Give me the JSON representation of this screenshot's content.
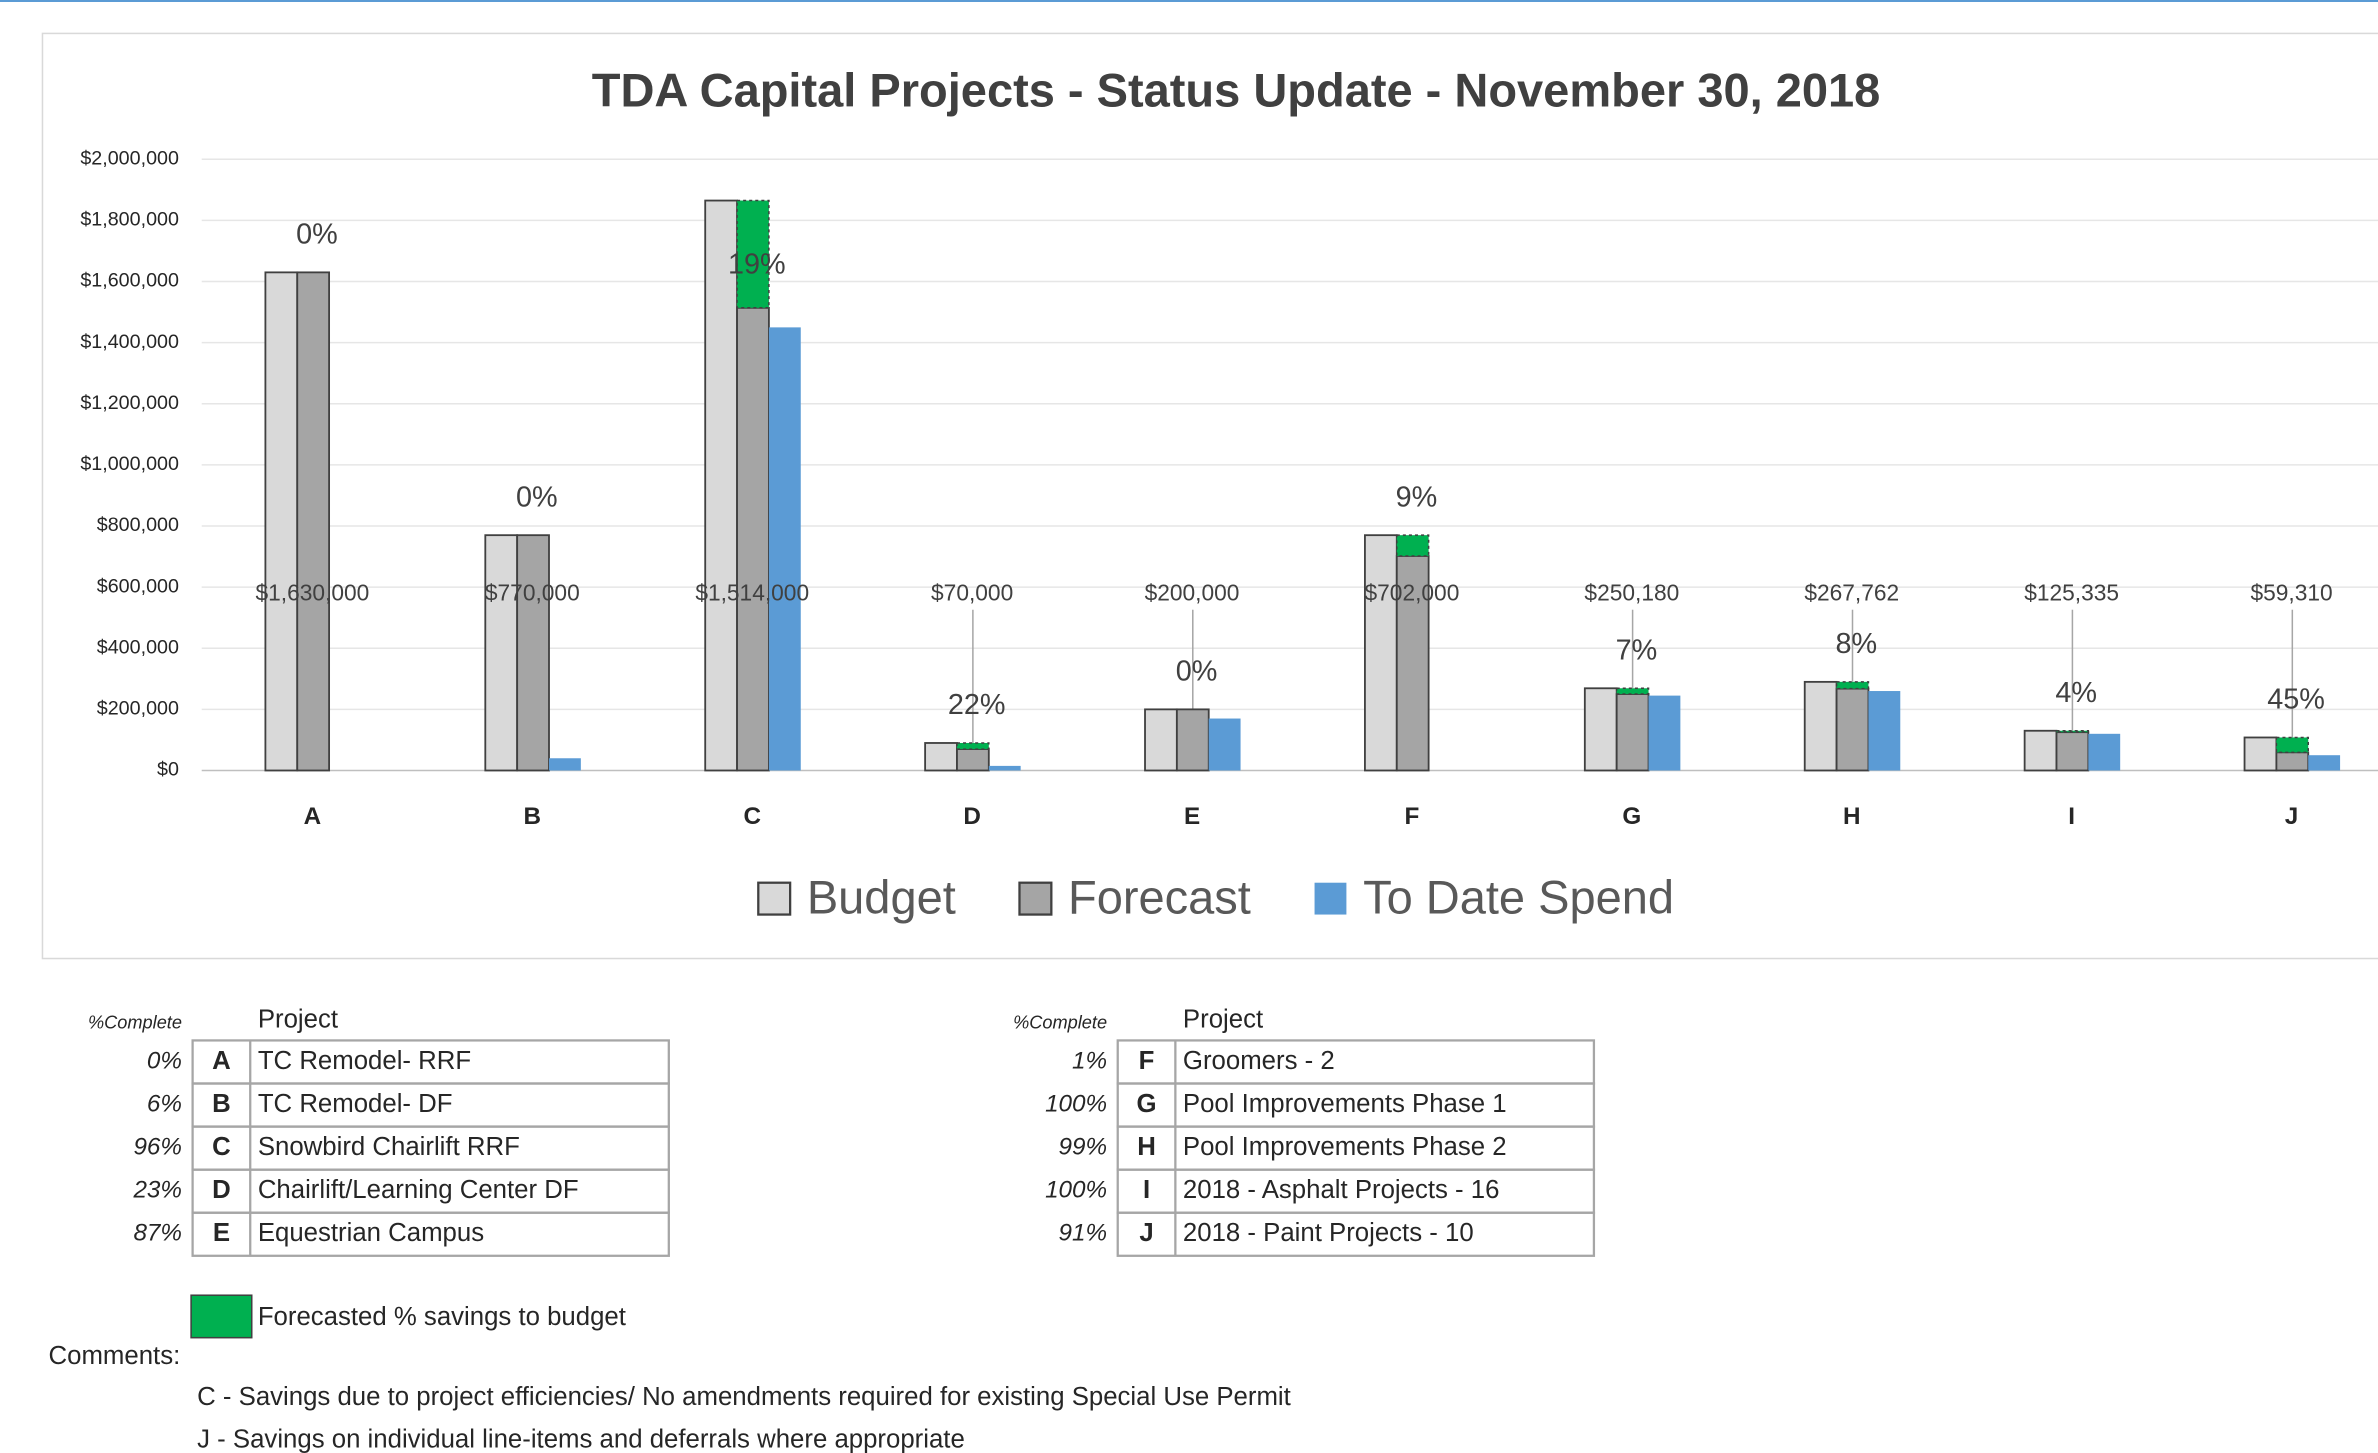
{
  "chart_data": {
    "type": "bar",
    "title": "TDA Capital Projects - Status Update - November 30, 2018",
    "categories": [
      "A",
      "B",
      "C",
      "D",
      "E",
      "F",
      "G",
      "H",
      "I",
      "J"
    ],
    "series": [
      {
        "name": "Budget",
        "color": "#d9d9d9",
        "values": [
          1630000,
          770000,
          1865000,
          90000,
          200000,
          770000,
          269000,
          290000,
          130000,
          108000
        ]
      },
      {
        "name": "Forecast",
        "color": "#a5a5a5",
        "values": [
          1630000,
          770000,
          1514000,
          70000,
          200000,
          702000,
          250180,
          267762,
          125335,
          59310
        ],
        "value_labels": [
          "$1,630,000",
          "$770,000",
          "$1,514,000",
          "$70,000",
          "$200,000",
          "$702,000",
          "$250,180",
          "$267,762",
          "$125,335",
          "$59,310"
        ]
      },
      {
        "name": "To Date Spend",
        "color": "#5b9bd5",
        "values": [
          0,
          40000,
          1450000,
          15000,
          170000,
          0,
          245000,
          260000,
          120000,
          50000
        ]
      }
    ],
    "savings": {
      "name": "Forecasted % savings to budget",
      "color": "#00b050",
      "values": [
        0,
        0,
        19,
        22,
        0,
        9,
        7,
        8,
        4,
        45
      ],
      "value_labels": [
        "0%",
        "0%",
        "19%",
        "22%",
        "0%",
        "9%",
        "7%",
        "8%",
        "4%",
        "45%"
      ]
    },
    "ylim": [
      0,
      2000000
    ],
    "yticks": [
      {
        "value": 0,
        "label": "$0"
      },
      {
        "value": 200000,
        "label": "$200,000"
      },
      {
        "value": 400000,
        "label": "$400,000"
      },
      {
        "value": 600000,
        "label": "$600,000"
      },
      {
        "value": 800000,
        "label": "$800,000"
      },
      {
        "value": 1000000,
        "label": "$1,000,000"
      },
      {
        "value": 1200000,
        "label": "$1,200,000"
      },
      {
        "value": 1400000,
        "label": "$1,400,000"
      },
      {
        "value": 1600000,
        "label": "$1,600,000"
      },
      {
        "value": 1800000,
        "label": "$1,800,000"
      },
      {
        "value": 2000000,
        "label": "$2,000,000"
      }
    ],
    "grid": true,
    "legend": "bottom"
  },
  "tables": [
    {
      "header": [
        "%Complete",
        "Project"
      ],
      "rows": [
        [
          "0%",
          "A",
          "TC Remodel- RRF"
        ],
        [
          "6%",
          "B",
          "TC Remodel- DF"
        ],
        [
          "96%",
          "C",
          "Snowbird Chairlift RRF"
        ],
        [
          "23%",
          "D",
          "Chairlift/Learning Center DF"
        ],
        [
          "87%",
          "E",
          "Equestrian Campus"
        ]
      ]
    },
    {
      "header": [
        "%Complete",
        "Project"
      ],
      "rows": [
        [
          "1%",
          "F",
          "Groomers - 2"
        ],
        [
          "100%",
          "G",
          "Pool Improvements Phase 1"
        ],
        [
          "99%",
          "H",
          "Pool Improvements Phase 2"
        ],
        [
          "100%",
          "I",
          "2018 - Asphalt Projects - 16"
        ],
        [
          "91%",
          "J",
          "2018 - Paint Projects - 10"
        ]
      ]
    }
  ],
  "comments": {
    "label": "Comments:",
    "lines": [
      "C - Savings due to project efficiencies/ No amendments required for existing Special Use Permit",
      "J  - Savings on individual line-items and deferrals where appropriate"
    ]
  }
}
